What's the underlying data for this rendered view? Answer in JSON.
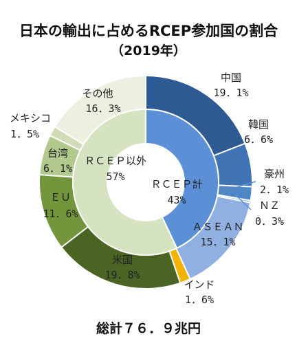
{
  "chart_data": {
    "type": "pie",
    "title": "日本の輸出に占めるRCEP参加国の割合",
    "subtitle": "（2019年）",
    "total_label": "総計７６．９兆円",
    "inner_ring": [
      {
        "name": "RCEP計",
        "value": 43,
        "value_label": "43%",
        "color": "#5b8fd6"
      },
      {
        "name": "RCEP以外",
        "value": 57,
        "value_label": "57%",
        "color": "#d5e3c0"
      }
    ],
    "outer_ring": [
      {
        "name": "中国",
        "value": 19.1,
        "value_label": "19.1%",
        "color": "#2e5a93"
      },
      {
        "name": "韓国",
        "value": 6.6,
        "value_label": "6.6%",
        "color": "#3f73b4"
      },
      {
        "name": "豪州",
        "value": 2.1,
        "value_label": "2.1%",
        "color": "#4f86c6"
      },
      {
        "name": "NZ",
        "value": 0.3,
        "value_label": "0.3%",
        "color": "#5b8fd6"
      },
      {
        "name": "ASEAN",
        "value": 15.1,
        "value_label": "15.1%",
        "color": "#8fb0e0"
      },
      {
        "name": "インド",
        "value": 1.6,
        "value_label": "1.6%",
        "color": "#f2b400"
      },
      {
        "name": "米国",
        "value": 19.8,
        "value_label": "19.8%",
        "color": "#4a6424"
      },
      {
        "name": "EU",
        "value": 11.6,
        "value_label": "11.6%",
        "color": "#73953b"
      },
      {
        "name": "台湾",
        "value": 6.1,
        "value_label": "6.1%",
        "color": "#b2c98d"
      },
      {
        "name": "メキシコ",
        "value": 1.5,
        "value_label": "1.5%",
        "color": "#cfdcb6"
      },
      {
        "name": "その他",
        "value": 16.3,
        "value_label": "16.3%",
        "color": "#ebf0e0"
      }
    ],
    "labels": {
      "rcep_total": "ＲＣＥＰ計",
      "rcep_total_pct": "43%",
      "rcep_other": "ＲＣＥＰ以外",
      "rcep_other_pct": "57%",
      "china": "中国",
      "china_pct": "19．1%",
      "korea": "韓国",
      "korea_pct": "6．6%",
      "australia": "豪州",
      "australia_pct": "2．1%",
      "nz": "ＮＺ",
      "nz_pct": "0．3%",
      "asean": "ＡＳＥＡＮ",
      "asean_pct": "15．1%",
      "india": "インド",
      "india_pct": "1．6%",
      "usa": "米国",
      "usa_pct": "19．8%",
      "eu": "ＥＵ",
      "eu_pct": "11．6%",
      "taiwan": "台湾",
      "taiwan_pct": "6．1%",
      "mexico": "メキシコ",
      "mexico_pct": "1．5%",
      "others": "その他",
      "others_pct": "16．3%"
    }
  }
}
